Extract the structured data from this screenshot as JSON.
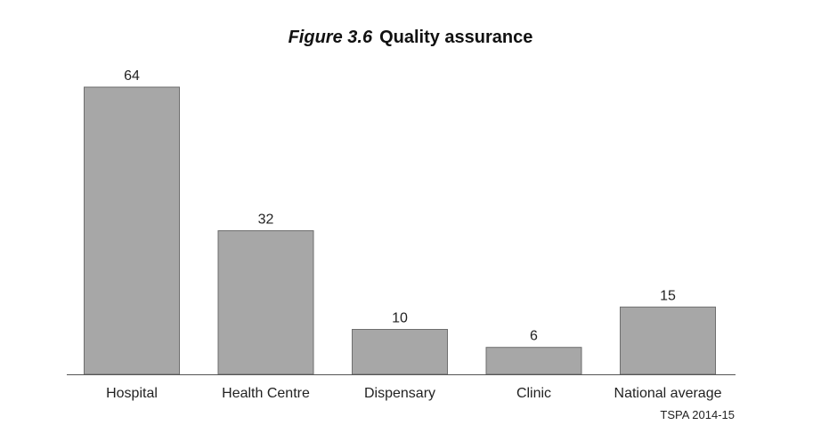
{
  "chart_data": {
    "type": "bar",
    "title_prefix": "Figure 3.6",
    "title": "Quality assurance",
    "categories": [
      "Hospital",
      "Health Centre",
      "Dispensary",
      "Clinic",
      "National average"
    ],
    "values": [
      64,
      32,
      10,
      6,
      15
    ],
    "value_labels": [
      "64",
      "32",
      "10",
      "6",
      "15"
    ],
    "xlabel": "",
    "ylabel": "",
    "ylim": [
      0,
      64
    ],
    "grid": false,
    "legend": "none",
    "bar_color": "#a7a7a7",
    "bar_edge_color": "#6e6e6e"
  },
  "source": "TSPA 2014-15"
}
